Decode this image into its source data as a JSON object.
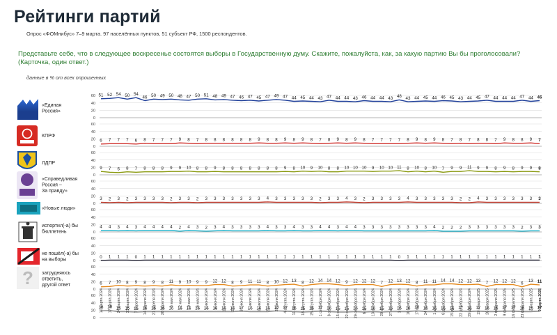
{
  "header": {
    "title": "Рейтинги партий",
    "subtitle": "Опрос «ФОМнибус» 7–9 марта. 97 населённых пунктов, 51 субъект РФ, 1500 респондентов.",
    "question_line1": "Представьте себе, что в следующее воскресенье состоятся выборы в Государственную думу. Скажите, пожалуйста, как, за какую партию Вы бы проголосовали?",
    "question_line2": "(Карточка, один ответ.)",
    "note": "данные в % от всех опрошенных"
  },
  "chart_data": {
    "type": "line",
    "ylim": [
      0,
      60
    ],
    "yticks": [
      0,
      20,
      40,
      60
    ],
    "grid": true,
    "dates": [
      "10 марта 2024",
      "17 марта 2024",
      "24 марта 2024",
      "31 марта 2024",
      "7 апреля 2024",
      "14 апреля 2024",
      "21 апреля 2024",
      "28 апреля 2024",
      "5 мая 2024",
      "12 мая 2024",
      "19 мая 2024",
      "26 мая 2024",
      "2 июня 2024",
      "9 июня 2024",
      "16 июня 2024",
      "23 июня 2024",
      "30 июня 2024",
      "7 июля 2024",
      "14 июля 2024",
      "21 июля 2024",
      "28 июля 2024",
      "4 августа 2024",
      "11 августа 2024",
      "18 августа 2024",
      "25 августа 2024",
      "1 сентября 2024",
      "8 сентября 2024",
      "15 сентября 2024",
      "22 сентября 2024",
      "29 сентября 2024",
      "6 октября 2024",
      "13 октября 2024",
      "20 октября 2024",
      "27 октября 2024",
      "3 ноября 2024",
      "10 ноября 2024",
      "17 ноября 2024",
      "24 ноября 2024",
      "1 декабря 2024",
      "8 декабря 2024",
      "15 декабря 2024",
      "22 декабря 2024",
      "29 декабря 2024",
      "19 января 2025",
      "26 января 2025",
      "2 февраля 2025",
      "9 февраля 2025",
      "16 февраля 2025",
      "23 февраля 2025",
      "2 марта 2025",
      "9 марта 2025"
    ],
    "series": [
      {
        "name": "«Единая Россия»",
        "color": "#1f3f99",
        "values": [
          51,
          52,
          54,
          50,
          54,
          46,
          50,
          49,
          50,
          48,
          47,
          50,
          51,
          48,
          49,
          47,
          46,
          47,
          45,
          47,
          49,
          47,
          44,
          45,
          44,
          43,
          47,
          44,
          44,
          43,
          46,
          44,
          44,
          43,
          48,
          43,
          44,
          45,
          44,
          46,
          45,
          43,
          44,
          45,
          47,
          44,
          44,
          44,
          47,
          44,
          46
        ]
      },
      {
        "name": "КПРФ",
        "color": "#d0312d",
        "values": [
          6,
          7,
          7,
          7,
          6,
          8,
          7,
          7,
          7,
          9,
          8,
          7,
          8,
          8,
          8,
          8,
          8,
          8,
          9,
          8,
          8,
          9,
          8,
          9,
          8,
          7,
          8,
          9,
          8,
          9,
          8,
          7,
          7,
          7,
          7,
          8,
          9,
          8,
          9,
          8,
          7,
          8,
          7,
          8,
          8,
          7,
          9,
          8,
          8,
          9,
          7
        ]
      },
      {
        "name": "ЛДПР",
        "color": "#8a9a10",
        "values": [
          9,
          7,
          6,
          8,
          7,
          8,
          8,
          8,
          9,
          9,
          10,
          8,
          8,
          9,
          8,
          8,
          8,
          8,
          8,
          8,
          8,
          9,
          8,
          10,
          9,
          10,
          8,
          8,
          10,
          10,
          10,
          9,
          10,
          10,
          11,
          8,
          10,
          8,
          10,
          7,
          9,
          9,
          11,
          9,
          9,
          8,
          9,
          8,
          9,
          9,
          8
        ]
      },
      {
        "name": "«Справедливая Россия – За правду»",
        "color": "#c0392b",
        "values": [
          3,
          2,
          3,
          2,
          3,
          3,
          3,
          3,
          2,
          3,
          3,
          2,
          3,
          3,
          3,
          3,
          3,
          3,
          3,
          4,
          3,
          3,
          3,
          3,
          3,
          2,
          3,
          3,
          4,
          3,
          2,
          3,
          3,
          3,
          3,
          4,
          3,
          3,
          3,
          3,
          3,
          2,
          2,
          4,
          3,
          3,
          3,
          3,
          3,
          3,
          3
        ]
      },
      {
        "name": "«Новые люди»",
        "color": "#17b0c9",
        "values": [
          4,
          4,
          3,
          4,
          3,
          4,
          4,
          4,
          4,
          2,
          4,
          3,
          2,
          3,
          4,
          3,
          3,
          3,
          3,
          4,
          3,
          3,
          4,
          3,
          3,
          4,
          4,
          3,
          4,
          4,
          3,
          3,
          3,
          3,
          3,
          3,
          3,
          3,
          4,
          2,
          2,
          2,
          3,
          3,
          3,
          3,
          3,
          3,
          2,
          3,
          3
        ]
      },
      {
        "name": "испортил(-а) бы бюллетень",
        "color": "#2f2f3f",
        "values": [
          0,
          1,
          1,
          1,
          0,
          1,
          1,
          1,
          1,
          1,
          1,
          1,
          1,
          1,
          1,
          1,
          1,
          1,
          1,
          1,
          1,
          1,
          1,
          1,
          1,
          1,
          1,
          1,
          1,
          1,
          1,
          1,
          1,
          1,
          0,
          1,
          1,
          1,
          1,
          1,
          1,
          1,
          1,
          1,
          1,
          1,
          1,
          1,
          1,
          1,
          1
        ]
      },
      {
        "name": "не пошёл(-а) бы на выборы",
        "color": "#e58a1f",
        "values": [
          6,
          7,
          10,
          8,
          9,
          8,
          9,
          8,
          11,
          9,
          10,
          9,
          9,
          12,
          12,
          8,
          9,
          11,
          11,
          8,
          10,
          12,
          13,
          8,
          12,
          14,
          14,
          12,
          9,
          12,
          12,
          12,
          7,
          12,
          13,
          12,
          8,
          11,
          11,
          14,
          14,
          12,
          12,
          13,
          7,
          12,
          12,
          12,
          6,
          13,
          11
        ]
      },
      {
        "name": "затрудняюсь ответить, другой ответ",
        "color": "#8c8c8c",
        "values": [
          18,
          19,
          16,
          16,
          15,
          16,
          16,
          16,
          16,
          16,
          16,
          16,
          16,
          16,
          16,
          16,
          17,
          16,
          16,
          16,
          18,
          17,
          16,
          15,
          16,
          17,
          16,
          15,
          15,
          16,
          15,
          16,
          15,
          16,
          16,
          16,
          18,
          16,
          16,
          16,
          16,
          17,
          16,
          17,
          16,
          16,
          17,
          17,
          16,
          16,
          17
        ]
      }
    ],
    "bold_last_label": true
  }
}
